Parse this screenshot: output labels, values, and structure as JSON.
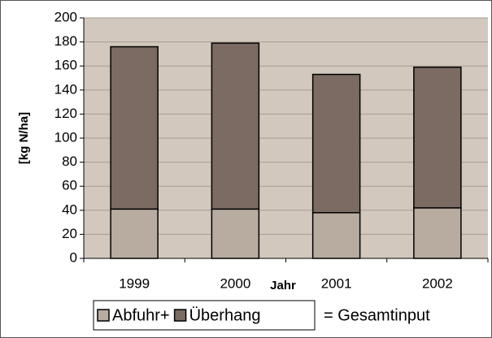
{
  "chart_data": {
    "type": "stacked-bar",
    "x_label": "Jahr",
    "y_label": "[kg N/ha]",
    "categories": [
      "1999",
      "2000",
      "2001",
      "2002"
    ],
    "series": [
      {
        "name": "Abfuhr+",
        "color": "#b8aba0",
        "values": [
          41,
          41,
          38,
          42
        ]
      },
      {
        "name": "Überhang",
        "color": "#7b6b62",
        "values": [
          135,
          138,
          115,
          117
        ]
      }
    ],
    "legend_note": "= Gesamtinput",
    "ylim": [
      0,
      200
    ],
    "yticks": [
      0,
      20,
      40,
      60,
      80,
      100,
      120,
      140,
      160,
      180,
      200
    ],
    "grid": true,
    "plot_background": "#d2c8bd"
  }
}
